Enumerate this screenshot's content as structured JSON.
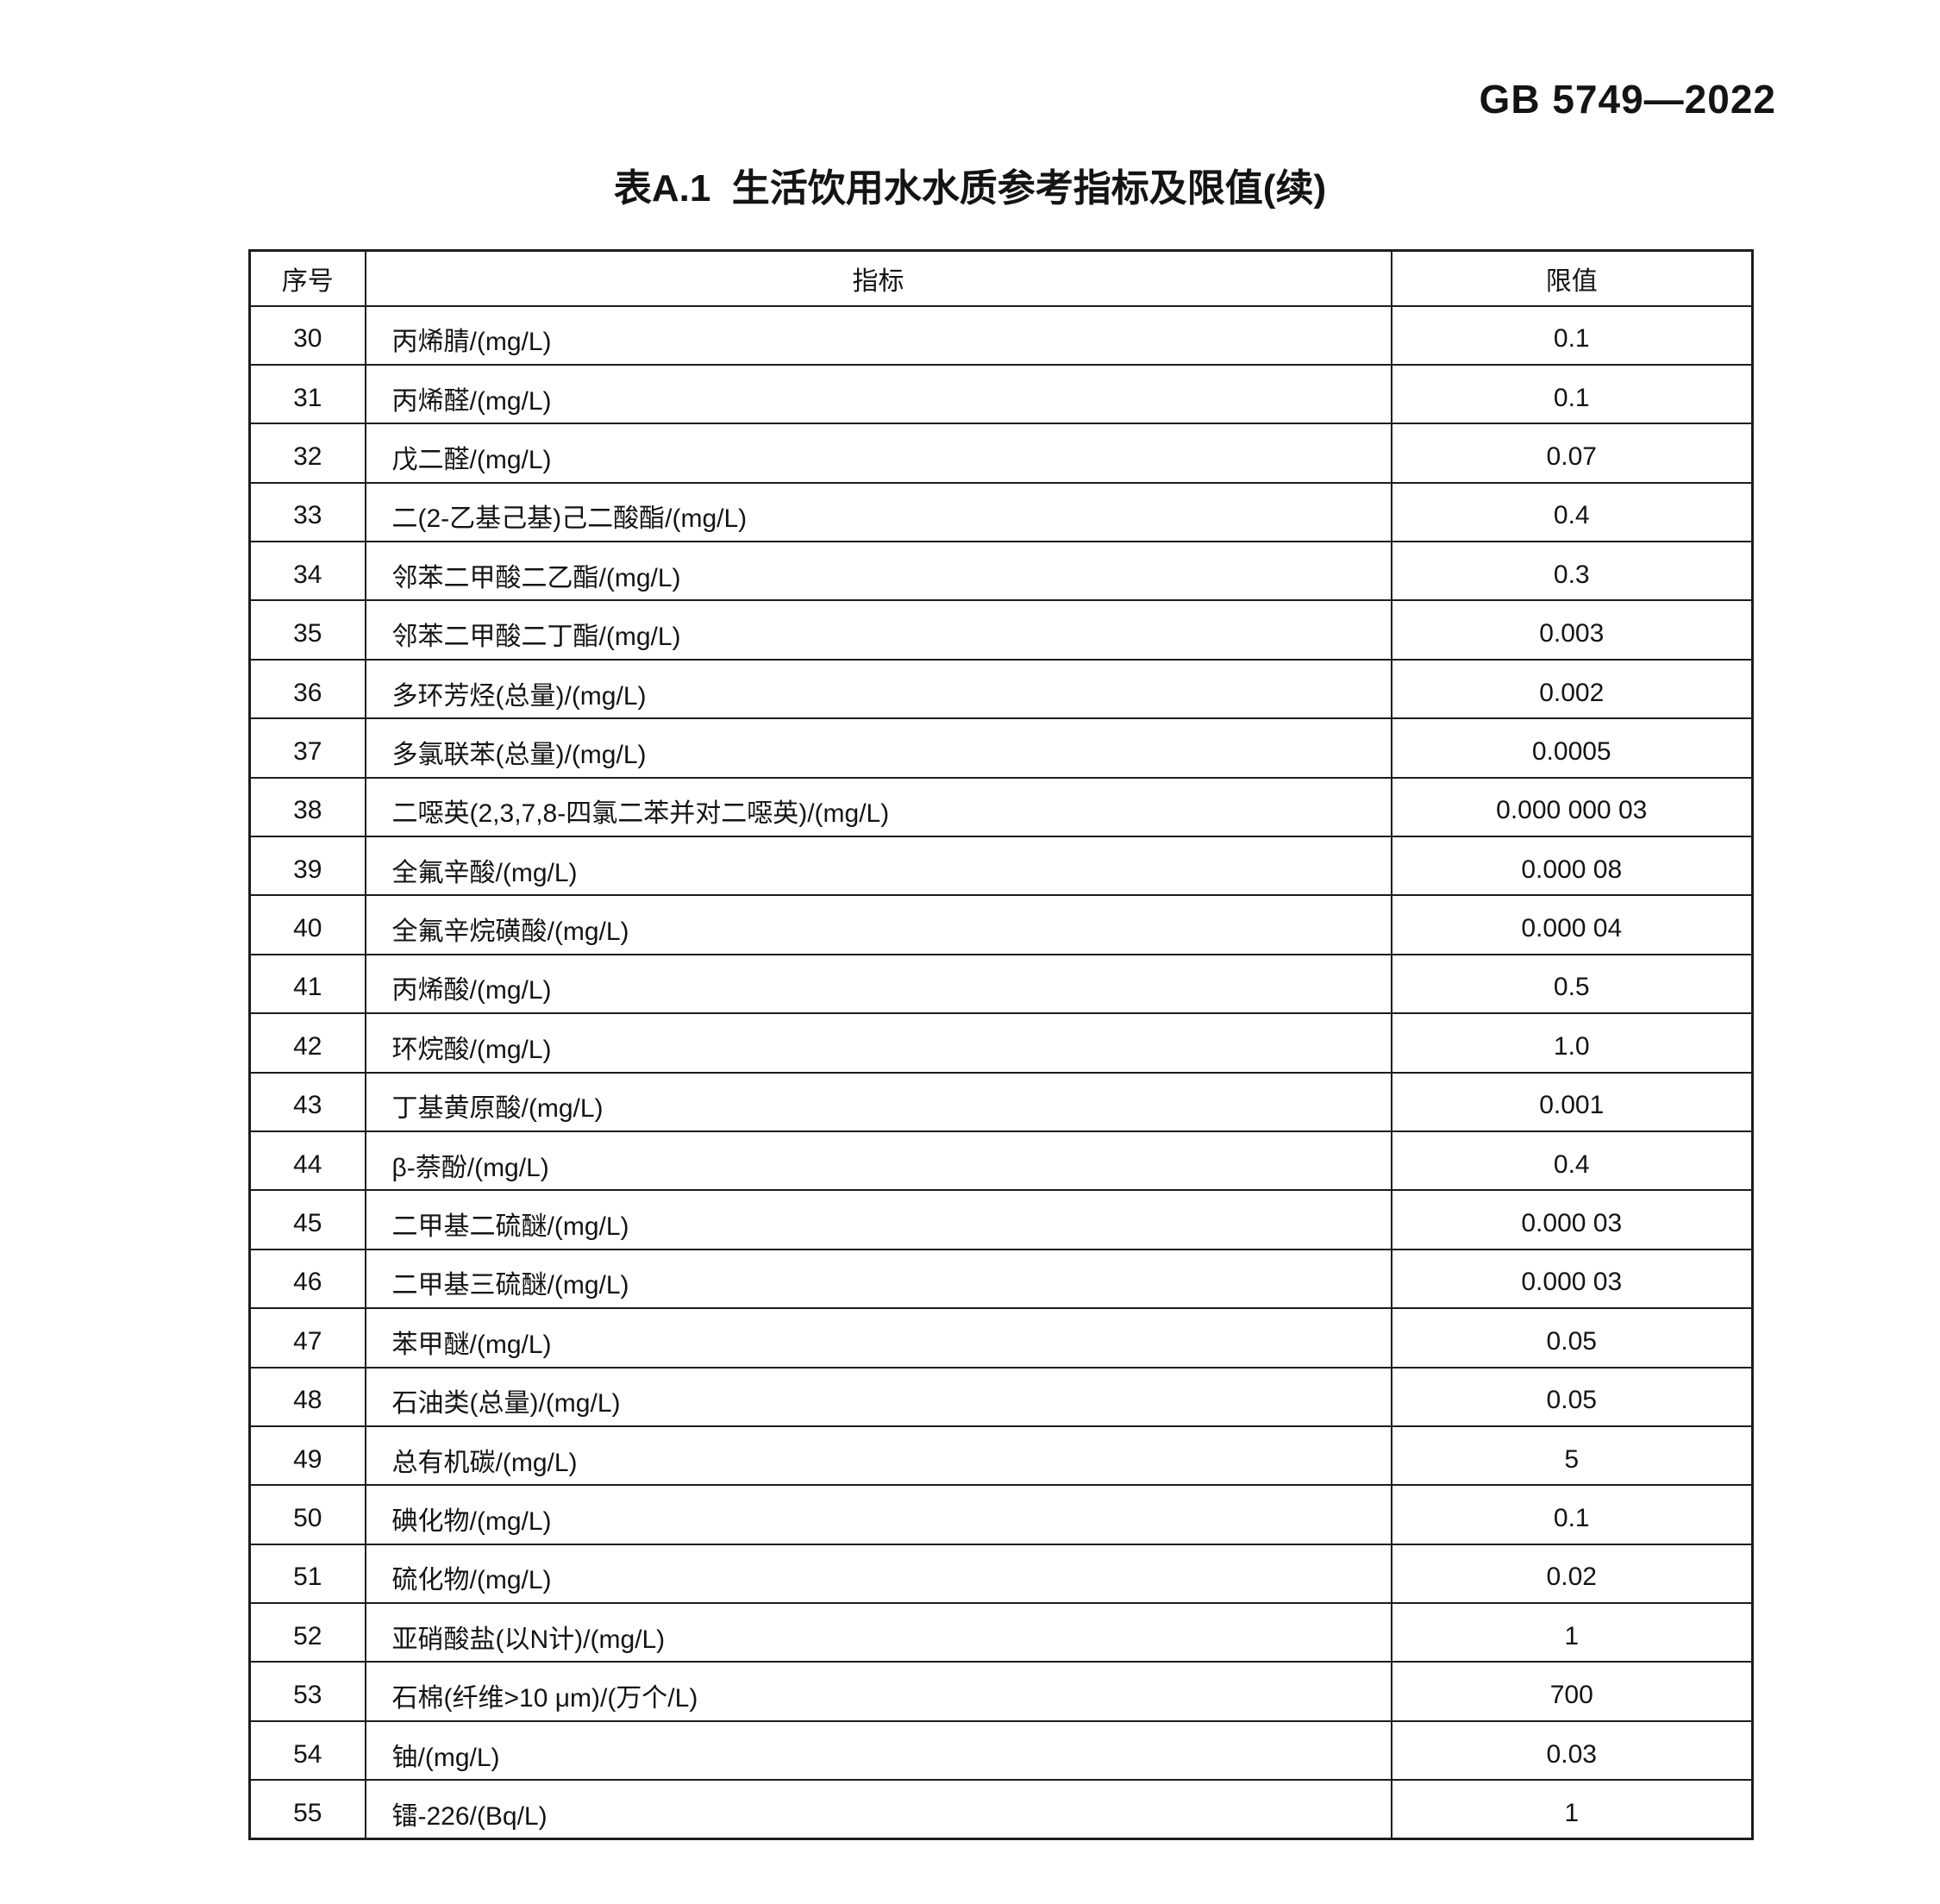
{
  "page": {
    "doc_code": "GB 5749—2022",
    "table_title": "表A.1  生活饮用水水质参考指标及限值(续)"
  },
  "table": {
    "columns": [
      "序号",
      "指标",
      "限值"
    ],
    "rows": [
      {
        "no": "30",
        "indicator": "丙烯腈/(mg/L)",
        "limit": "0.1"
      },
      {
        "no": "31",
        "indicator": "丙烯醛/(mg/L)",
        "limit": "0.1"
      },
      {
        "no": "32",
        "indicator": "戊二醛/(mg/L)",
        "limit": "0.07"
      },
      {
        "no": "33",
        "indicator": "二(2-乙基己基)己二酸酯/(mg/L)",
        "limit": "0.4"
      },
      {
        "no": "34",
        "indicator": "邻苯二甲酸二乙酯/(mg/L)",
        "limit": "0.3"
      },
      {
        "no": "35",
        "indicator": "邻苯二甲酸二丁酯/(mg/L)",
        "limit": "0.003"
      },
      {
        "no": "36",
        "indicator": "多环芳烃(总量)/(mg/L)",
        "limit": "0.002"
      },
      {
        "no": "37",
        "indicator": "多氯联苯(总量)/(mg/L)",
        "limit": "0.0005"
      },
      {
        "no": "38",
        "indicator": "二噁英(2,3,7,8-四氯二苯并对二噁英)/(mg/L)",
        "limit": "0.000 000 03"
      },
      {
        "no": "39",
        "indicator": "全氟辛酸/(mg/L)",
        "limit": "0.000 08"
      },
      {
        "no": "40",
        "indicator": "全氟辛烷磺酸/(mg/L)",
        "limit": "0.000 04"
      },
      {
        "no": "41",
        "indicator": "丙烯酸/(mg/L)",
        "limit": "0.5"
      },
      {
        "no": "42",
        "indicator": "环烷酸/(mg/L)",
        "limit": "1.0"
      },
      {
        "no": "43",
        "indicator": "丁基黄原酸/(mg/L)",
        "limit": "0.001"
      },
      {
        "no": "44",
        "indicator": "β-萘酚/(mg/L)",
        "limit": "0.4"
      },
      {
        "no": "45",
        "indicator": "二甲基二硫醚/(mg/L)",
        "limit": "0.000 03"
      },
      {
        "no": "46",
        "indicator": "二甲基三硫醚/(mg/L)",
        "limit": "0.000 03"
      },
      {
        "no": "47",
        "indicator": "苯甲醚/(mg/L)",
        "limit": "0.05"
      },
      {
        "no": "48",
        "indicator": "石油类(总量)/(mg/L)",
        "limit": "0.05"
      },
      {
        "no": "49",
        "indicator": "总有机碳/(mg/L)",
        "limit": "5"
      },
      {
        "no": "50",
        "indicator": "碘化物/(mg/L)",
        "limit": "0.1"
      },
      {
        "no": "51",
        "indicator": "硫化物/(mg/L)",
        "limit": "0.02"
      },
      {
        "no": "52",
        "indicator": "亚硝酸盐(以N计)/(mg/L)",
        "limit": "1"
      },
      {
        "no": "53",
        "indicator": "石棉(纤维>10 μm)/(万个/L)",
        "limit": "700"
      },
      {
        "no": "54",
        "indicator": "铀/(mg/L)",
        "limit": "0.03"
      },
      {
        "no": "55",
        "indicator": "镭-226/(Bq/L)",
        "limit": "1"
      }
    ]
  }
}
